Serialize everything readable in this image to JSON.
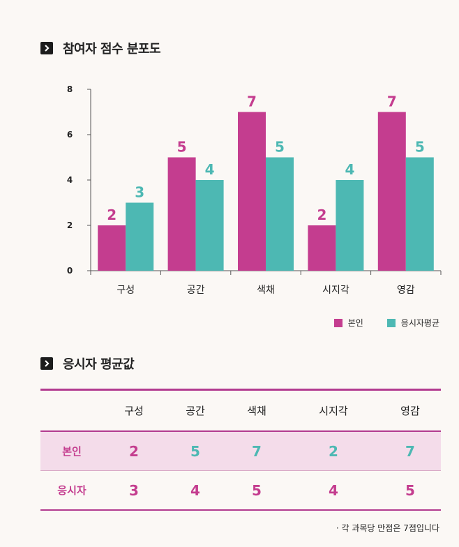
{
  "section1": {
    "title": "참여자 점수 분포도"
  },
  "section2": {
    "title": "응시자 평균값"
  },
  "chart_data": {
    "type": "bar",
    "title": "참여자 점수 분포도",
    "categories": [
      "구성",
      "공간",
      "색채",
      "시지각",
      "영감"
    ],
    "series": [
      {
        "name": "본인",
        "color": "#c43d8f",
        "values": [
          2,
          5,
          7,
          2,
          7
        ]
      },
      {
        "name": "응시자평균",
        "color": "#4db8b3",
        "values": [
          3,
          4,
          5,
          4,
          5
        ]
      }
    ],
    "yticks": [
      0,
      2,
      4,
      6,
      8
    ],
    "ylim": [
      0,
      8
    ],
    "legend_position": "bottom-right"
  },
  "table": {
    "headers": [
      "구성",
      "공간",
      "색채",
      "시지각",
      "영감"
    ],
    "rows": [
      {
        "label": "본인",
        "values": [
          2,
          5,
          7,
          2,
          7
        ]
      },
      {
        "label": "응시자",
        "values": [
          3,
          4,
          5,
          4,
          5
        ]
      }
    ]
  },
  "note": "· 각 과목당 만점은 7점입니다"
}
